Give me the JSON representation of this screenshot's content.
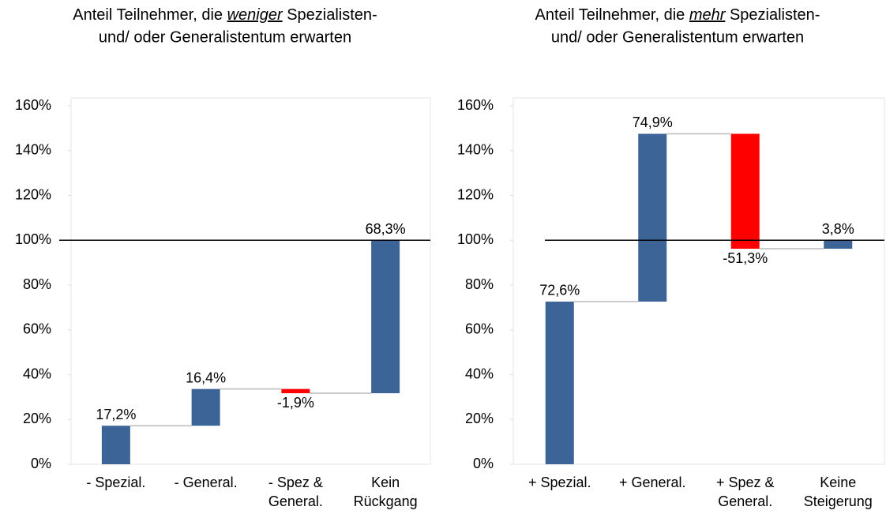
{
  "chart_data": [
    {
      "type": "waterfall",
      "title": {
        "before": "Anteil Teilnehmer, die ",
        "emphasis": "weniger",
        "after": " Spezialisten-",
        "line2": "und/ oder Generalistentum erwarten"
      },
      "categories": [
        [
          "- Spezial."
        ],
        [
          "- General."
        ],
        [
          "- Spez &",
          "General."
        ],
        [
          "Kein",
          "Rückgang"
        ]
      ],
      "values": [
        17.2,
        16.4,
        -1.9,
        68.3
      ],
      "value_labels": [
        "17,2%",
        "16,4%",
        "-1,9%",
        "68,3%"
      ],
      "ylim": [
        0,
        160
      ],
      "yticks": [
        {
          "value": 0,
          "label": "0%"
        },
        {
          "value": 20,
          "label": "20%"
        },
        {
          "value": 40,
          "label": "40%"
        },
        {
          "value": 60,
          "label": "60%"
        },
        {
          "value": 80,
          "label": "80%"
        },
        {
          "value": 100,
          "label": "100%"
        },
        {
          "value": 120,
          "label": "120%"
        },
        {
          "value": 140,
          "label": "140%"
        },
        {
          "value": 160,
          "label": "160%"
        }
      ],
      "reference_line": 100,
      "color": "#3c6496",
      "negative_color": "#ff0000"
    },
    {
      "type": "waterfall",
      "title": {
        "before": "Anteil Teilnehmer, die ",
        "emphasis": "mehr",
        "after": " Spezialisten-",
        "line2": "und/ oder Generalistentum erwarten"
      },
      "categories": [
        [
          "+ Spezial."
        ],
        [
          "+ General."
        ],
        [
          "+ Spez &",
          "General."
        ],
        [
          "Keine",
          "Steigerung"
        ]
      ],
      "values": [
        72.6,
        74.9,
        -51.3,
        3.8
      ],
      "value_labels": [
        "72,6%",
        "74,9%",
        "-51,3%",
        "3,8%"
      ],
      "ylim": [
        0,
        160
      ],
      "yticks": [
        {
          "value": 0,
          "label": "0%"
        },
        {
          "value": 20,
          "label": "20%"
        },
        {
          "value": 40,
          "label": "40%"
        },
        {
          "value": 60,
          "label": "60%"
        },
        {
          "value": 80,
          "label": "80%"
        },
        {
          "value": 100,
          "label": "100%"
        },
        {
          "value": 120,
          "label": "120%"
        },
        {
          "value": 140,
          "label": "140%"
        },
        {
          "value": 160,
          "label": "160%"
        }
      ],
      "reference_line": 100,
      "color": "#3c6496",
      "negative_color": "#ff0000"
    }
  ]
}
